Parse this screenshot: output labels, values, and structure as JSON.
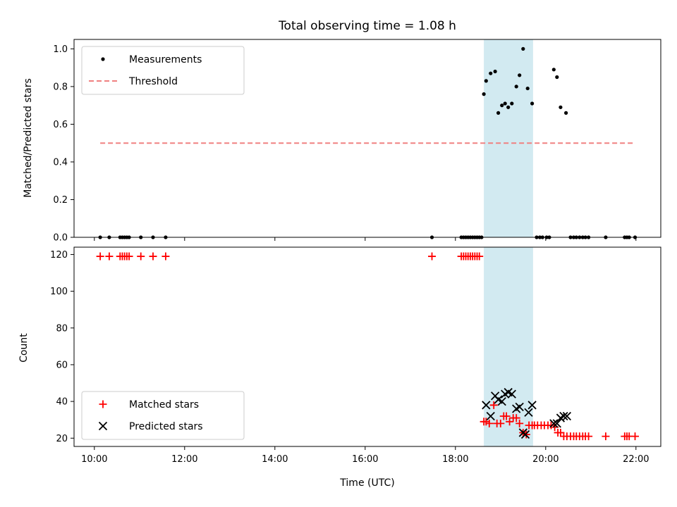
{
  "chart_data": {
    "title": "Total observing time = 1.08 h",
    "xlabel": "Time (UTC)",
    "x_unit": "hours UTC",
    "xlim": [
      9.55,
      22.55
    ],
    "xticks": [
      10,
      12,
      14,
      16,
      18,
      20,
      22
    ],
    "xticklabels": [
      "10:00",
      "12:00",
      "14:00",
      "16:00",
      "18:00",
      "20:00",
      "22:00"
    ],
    "highlight_span": {
      "x": [
        18.63,
        19.72
      ],
      "color": "#add8e6"
    },
    "panels": [
      {
        "id": "ratio",
        "type": "scatter",
        "ylabel": "Matched/Predicted stars",
        "ylim": [
          0,
          1.05
        ],
        "yticks": [
          0.0,
          0.2,
          0.4,
          0.6,
          0.8,
          1.0
        ],
        "yticklabels": [
          "0.0",
          "0.2",
          "0.4",
          "0.6",
          "0.8",
          "1.0"
        ],
        "legend": {
          "placement": "top-left",
          "entries": [
            "Measurements",
            "Threshold"
          ]
        },
        "series": [
          {
            "name": "Measurements",
            "color": "#000000",
            "marker": "dot",
            "x": [
              10.13,
              10.33,
              10.57,
              10.62,
              10.67,
              10.72,
              10.77,
              11.03,
              11.3,
              11.58,
              17.48,
              18.13,
              18.18,
              18.23,
              18.28,
              18.33,
              18.38,
              18.43,
              18.48,
              18.53,
              18.58,
              18.63,
              18.68,
              18.78,
              18.88,
              18.95,
              19.03,
              19.1,
              19.17,
              19.25,
              19.35,
              19.42,
              19.5,
              19.6,
              19.7,
              19.8,
              19.87,
              19.93,
              20.02,
              20.08,
              20.18,
              20.25,
              20.33,
              20.45,
              20.55,
              20.62,
              20.68,
              20.75,
              20.82,
              20.88,
              20.95,
              21.33,
              21.75,
              21.8,
              21.85,
              21.98
            ],
            "y": [
              0,
              0,
              0,
              0,
              0,
              0,
              0,
              0,
              0,
              0,
              0,
              0,
              0,
              0,
              0,
              0,
              0,
              0,
              0,
              0,
              0,
              0.76,
              0.83,
              0.87,
              0.88,
              0.66,
              0.7,
              0.71,
              0.69,
              0.71,
              0.8,
              0.86,
              1.0,
              0.79,
              0.71,
              0,
              0,
              0,
              0,
              0,
              0.89,
              0.85,
              0.69,
              0.66,
              0,
              0,
              0,
              0,
              0,
              0,
              0,
              0,
              0,
              0,
              0,
              0
            ]
          },
          {
            "name": "Threshold",
            "color": "#f08080",
            "style": "dashed",
            "x": [
              10.13,
              21.98
            ],
            "y": [
              0.5,
              0.5
            ]
          }
        ]
      },
      {
        "id": "counts",
        "type": "scatter",
        "ylabel": "Count",
        "ylim": [
          15.5,
          124
        ],
        "yticks": [
          20,
          40,
          60,
          80,
          100,
          120
        ],
        "yticklabels": [
          "20",
          "40",
          "60",
          "80",
          "100",
          "120"
        ],
        "legend": {
          "placement": "bottom-left",
          "entries": [
            "Matched stars",
            "Predicted stars"
          ]
        },
        "series": [
          {
            "name": "Matched stars",
            "color": "#ff0000",
            "marker": "plus",
            "x": [
              10.13,
              10.33,
              10.57,
              10.62,
              10.67,
              10.72,
              10.77,
              11.03,
              11.3,
              11.58,
              17.48,
              18.13,
              18.18,
              18.23,
              18.28,
              18.33,
              18.38,
              18.43,
              18.48,
              18.53,
              18.63,
              18.68,
              18.75,
              18.85,
              18.92,
              19.0,
              19.07,
              19.13,
              19.2,
              19.28,
              19.35,
              19.42,
              19.5,
              19.57,
              19.63,
              19.7,
              19.75,
              19.82,
              19.9,
              19.97,
              20.05,
              20.12,
              20.2,
              20.27,
              20.33,
              20.4,
              20.47,
              20.55,
              20.62,
              20.68,
              20.75,
              20.82,
              20.88,
              20.95,
              21.33,
              21.75,
              21.8,
              21.85,
              21.98
            ],
            "y": [
              119,
              119,
              119,
              119,
              119,
              119,
              119,
              119,
              119,
              119,
              119,
              119,
              119,
              119,
              119,
              119,
              119,
              119,
              119,
              119,
              29,
              29,
              28,
              38,
              28,
              28,
              32,
              32,
              29,
              31,
              31,
              28,
              23,
              22,
              27,
              27,
              27,
              27,
              27,
              27,
              27,
              27,
              26,
              23,
              23,
              21,
              21,
              21,
              21,
              21,
              21,
              21,
              21,
              21,
              21,
              21,
              21,
              21,
              21
            ]
          },
          {
            "name": "Predicted stars",
            "color": "#000000",
            "marker": "x",
            "x": [
              18.68,
              18.78,
              18.88,
              18.95,
              19.03,
              19.1,
              19.17,
              19.25,
              19.35,
              19.42,
              19.5,
              19.55,
              19.62,
              19.7,
              20.18,
              20.25,
              20.33,
              20.4,
              20.47
            ],
            "y": [
              38,
              32,
              43,
              41,
              40,
              44,
              45,
              44,
              36,
              37,
              23,
              22,
              34,
              38,
              28,
              28,
              31,
              32,
              32
            ]
          }
        ]
      }
    ]
  }
}
